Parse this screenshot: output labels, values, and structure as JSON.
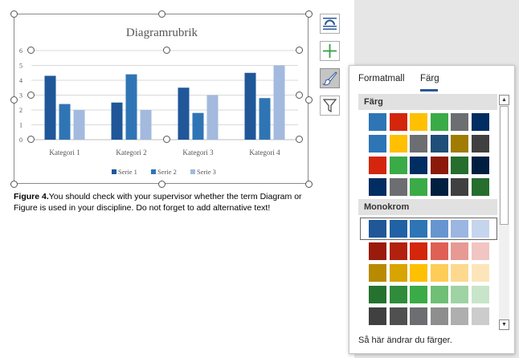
{
  "chart": {
    "chart_data": {
      "type": "bar",
      "title": "Diagramrubrik",
      "categories": [
        "Kategori 1",
        "Kategori 2",
        "Kategori 3",
        "Kategori 4"
      ],
      "series": [
        {
          "name": "Serie 1",
          "values": [
            4.3,
            2.5,
            3.5,
            4.5
          ],
          "color": "#1f5799"
        },
        {
          "name": "Serie 2",
          "values": [
            2.4,
            4.4,
            1.8,
            2.8
          ],
          "color": "#2f75b5"
        },
        {
          "name": "Serie 3",
          "values": [
            2.0,
            2.0,
            3.0,
            5.0
          ],
          "color": "#a3b9de"
        }
      ],
      "ylim": [
        0,
        6
      ],
      "yticks": [
        "0",
        "1",
        "2",
        "3",
        "4",
        "5",
        "6"
      ],
      "grid": true,
      "legend": "bottom"
    }
  },
  "caption": {
    "label": "Figure 4.",
    "text": "You should check with your supervisor whether the term Diagram or Figure is used in your discipline. Do not forget to add alternative text!"
  },
  "side_buttons": [
    {
      "icon": "layout-options-icon"
    },
    {
      "icon": "chart-elements-icon"
    },
    {
      "icon": "chart-styles-icon"
    },
    {
      "icon": "chart-filters-icon"
    }
  ],
  "panel": {
    "tabs": [
      "Formatmall",
      "Färg"
    ],
    "active_tab": "Färg",
    "sections": [
      {
        "title": "Färg",
        "rows": [
          [
            "#2e75b6",
            "#d3260d",
            "#fec000",
            "#3aab46",
            "#6d6e71",
            "#002d62"
          ],
          [
            "#2e75b6",
            "#fec000",
            "#6d6e71",
            "#1f4e79",
            "#a07d00",
            "#404040"
          ],
          [
            "#d3260d",
            "#3aab46",
            "#002d62",
            "#8b1a0a",
            "#256e2e",
            "#001f40"
          ],
          [
            "#002d62",
            "#6d6e71",
            "#3aab46",
            "#001f40",
            "#404040",
            "#256e2e"
          ]
        ]
      },
      {
        "title": "Monokrom",
        "rows": [
          [
            "#1f5799",
            "#2161a6",
            "#2e75b6",
            "#6795d0",
            "#9ab6e1",
            "#c6d5ee"
          ],
          [
            "#9a1a0b",
            "#b2200e",
            "#d3260d",
            "#df6054",
            "#e79994",
            "#f1c5c2"
          ],
          [
            "#b88a00",
            "#d8a400",
            "#fec000",
            "#fecd58",
            "#fdd98f",
            "#fde5bb"
          ],
          [
            "#24722d",
            "#2e8c3a",
            "#3aab46",
            "#6fbf76",
            "#9fd3a3",
            "#c8e5ca"
          ],
          [
            "#404040",
            "#505050",
            "#6d6e71",
            "#8e8e8e",
            "#afafaf",
            "#cccccc"
          ]
        ]
      }
    ],
    "footer": "Så här ändrar du färger."
  }
}
